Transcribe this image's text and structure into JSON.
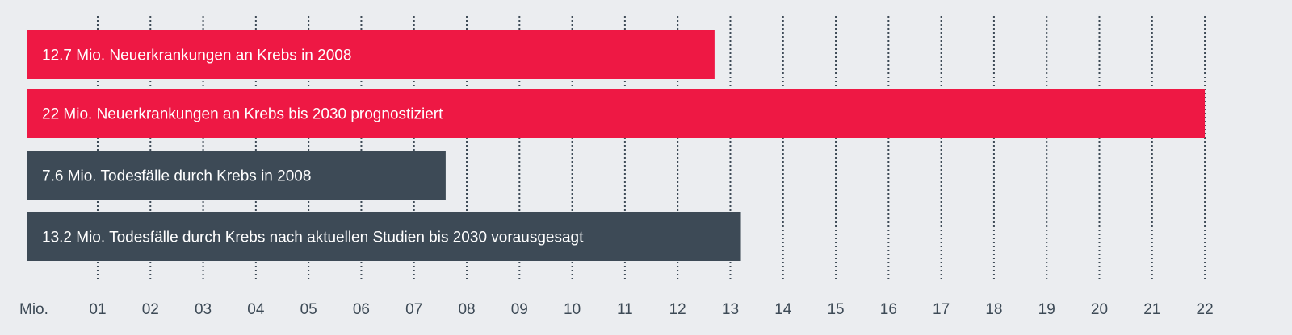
{
  "chart_data": {
    "type": "bar",
    "orientation": "horizontal",
    "unit_label": "Mio.",
    "x_ticks": [
      "01",
      "02",
      "03",
      "04",
      "05",
      "06",
      "07",
      "08",
      "09",
      "10",
      "11",
      "12",
      "13",
      "14",
      "15",
      "16",
      "17",
      "18",
      "19",
      "20",
      "21",
      "22"
    ],
    "xlim": [
      0,
      22
    ],
    "grid": true,
    "bars": [
      {
        "label": "12.7 Mio. Neuerkrankungen an Krebs in 2008",
        "value": 12.7,
        "color": "#ee1844"
      },
      {
        "label": "22 Mio. Neuerkrankungen an Krebs bis 2030 prognostiziert",
        "value": 22,
        "color": "#ee1844"
      },
      {
        "label": "7.6 Mio. Todesfälle durch Krebs in 2008",
        "value": 7.6,
        "color": "#3d4a56"
      },
      {
        "label": "13.2 Mio. Todesfälle durch Krebs nach aktuellen Studien bis 2030 vorausgesagt",
        "value": 13.2,
        "color": "#3d4a56"
      }
    ]
  }
}
